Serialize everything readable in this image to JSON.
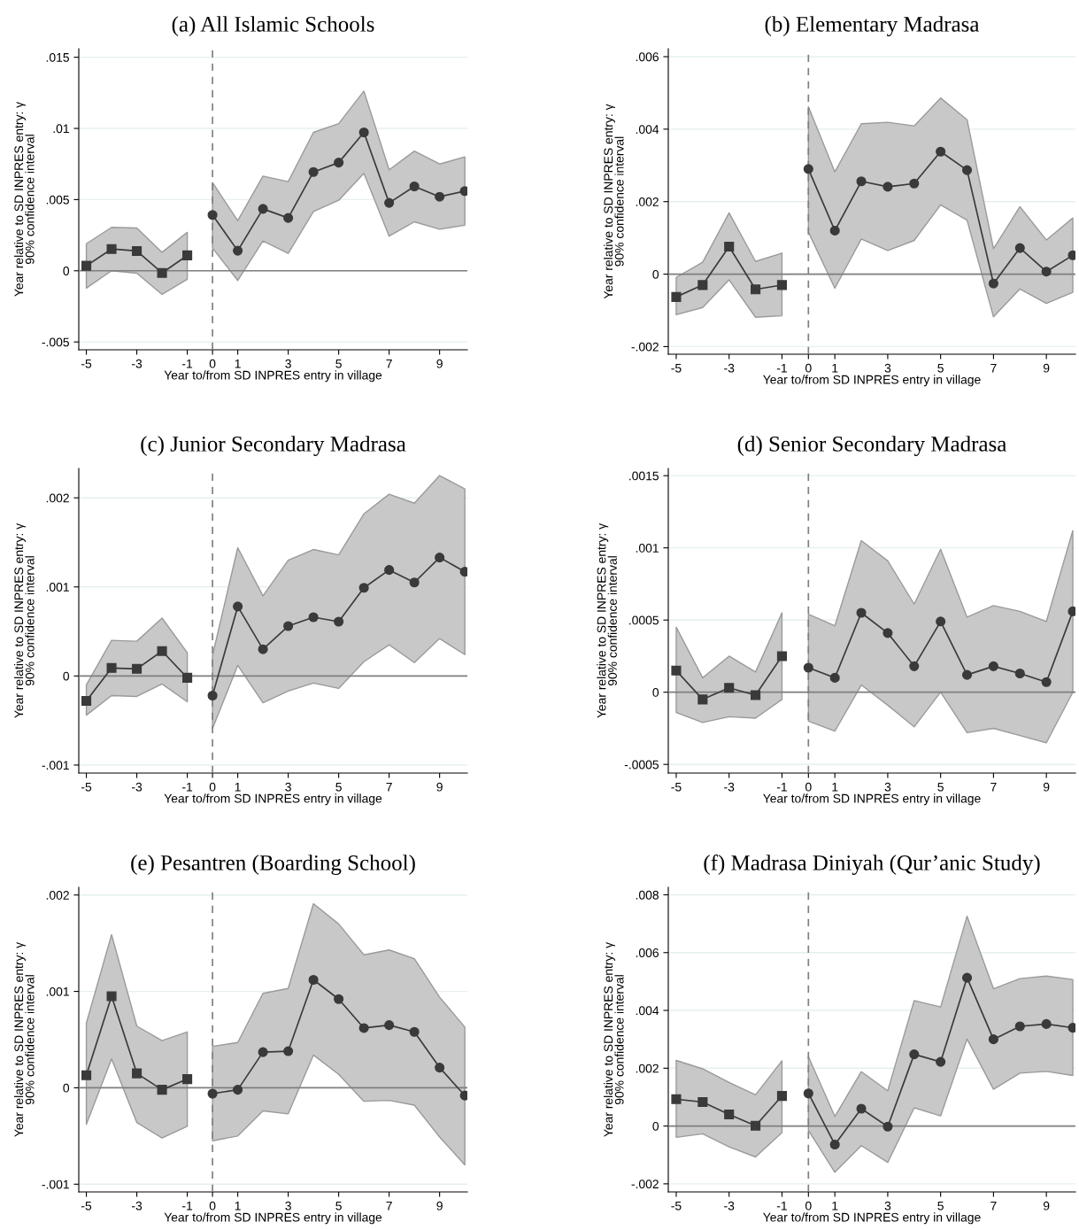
{
  "chart_data": [
    {
      "type": "line",
      "title": "(a) All Islamic Schools",
      "xlabel": "Year to/from SD INPRES entry in village",
      "ylabel": "Year relative to SD INPRES entry: γ\n90% confidence interval",
      "xlim": [
        -5.3,
        10.1
      ],
      "ylim": [
        -0.00555,
        0.0156
      ],
      "xticks": [
        -5,
        -3,
        -1,
        0,
        1,
        3,
        5,
        7,
        9
      ],
      "yticks": [
        {
          "value": -0.005,
          "label": "-.005"
        },
        0,
        {
          "value": 0.005,
          "label": ".005"
        },
        {
          "value": 0.01,
          "label": ".01"
        },
        {
          "value": 0.015,
          "label": ".015"
        }
      ],
      "grid": "y",
      "ref_lines": [
        {
          "axis": "y",
          "value": 0,
          "color": "#7f7f7f",
          "line_style": "solid"
        },
        {
          "axis": "x",
          "value": 0,
          "color": "#7f7f7f",
          "line_style": "dashed"
        }
      ],
      "series": [
        {
          "color": "#3a3a3a",
          "marker": "square",
          "x": [
            -5,
            -4,
            -3,
            -2,
            -1
          ],
          "values": [
            0.00035,
            0.00153,
            0.00139,
            -0.00015,
            0.00108
          ],
          "lower": [
            -0.00122,
            0,
            -0.00017,
            -0.00166,
            -0.0006
          ],
          "upper": [
            0.0019,
            0.00305,
            0.003,
            0.0013,
            0.0027
          ]
        },
        {
          "color": "#3a3a3a",
          "marker": "circle",
          "x": [
            0,
            1,
            2,
            3,
            4,
            5,
            6,
            7,
            8,
            9,
            10
          ],
          "values": [
            0.00392,
            0.00141,
            0.00435,
            0.00371,
            0.00694,
            0.0076,
            0.00972,
            0.00477,
            0.00593,
            0.0052,
            0.0056
          ],
          "lower": [
            0.0016,
            -0.00068,
            0.00209,
            0.00122,
            0.00416,
            0.00495,
            0.00684,
            0.00243,
            0.00344,
            0.00292,
            0.0032
          ],
          "upper": [
            0.0062,
            0.00352,
            0.00665,
            0.00626,
            0.00972,
            0.01034,
            0.01262,
            0.00709,
            0.00841,
            0.0075,
            0.008
          ]
        }
      ]
    },
    {
      "type": "line",
      "title": "(b) Elementary Madrasa",
      "xlabel": "Year to/from SD INPRES entry in village",
      "ylabel": "Year relative to SD INPRES entry: γ\n90% confidence interval",
      "xlim": [
        -5.3,
        10.1
      ],
      "ylim": [
        -0.00221,
        0.00622
      ],
      "xticks": [
        -5,
        -3,
        -1,
        0,
        1,
        3,
        5,
        7,
        9
      ],
      "yticks": [
        {
          "value": -0.002,
          "label": "-.002"
        },
        0,
        {
          "value": 0.002,
          "label": ".002"
        },
        {
          "value": 0.004,
          "label": ".004"
        },
        {
          "value": 0.006,
          "label": ".006"
        }
      ],
      "grid": "y",
      "ref_lines": [
        {
          "axis": "y",
          "value": 0,
          "color": "#7f7f7f",
          "line_style": "solid"
        },
        {
          "axis": "x",
          "value": 0,
          "color": "#7f7f7f",
          "line_style": "dashed"
        }
      ],
      "series": [
        {
          "color": "#3a3a3a",
          "marker": "square",
          "x": [
            -5,
            -4,
            -3,
            -2,
            -1
          ],
          "values": [
            -0.00063,
            -0.0003,
            0.00076,
            -0.00042,
            -0.0003
          ],
          "lower": [
            -0.00112,
            -0.00092,
            -0.00016,
            -0.00119,
            -0.00115
          ],
          "upper": [
            -9e-05,
            0.00033,
            0.00169,
            0.00035,
            0.00058
          ]
        },
        {
          "color": "#3a3a3a",
          "marker": "circle",
          "x": [
            0,
            1,
            2,
            3,
            4,
            5,
            6,
            7,
            8,
            9,
            10
          ],
          "values": [
            0.0029,
            0.0012,
            0.00256,
            0.00241,
            0.0025,
            0.00338,
            0.00287,
            -0.00026,
            0.00072,
            7e-05,
            0.00052
          ],
          "lower": [
            0.00116,
            -0.00039,
            0.00097,
            0.00065,
            0.00093,
            0.00191,
            0.00149,
            -0.00118,
            -0.00041,
            -0.00081,
            -0.0005
          ],
          "upper": [
            0.00462,
            0.00282,
            0.00415,
            0.00419,
            0.00409,
            0.00486,
            0.00426,
            0.0007,
            0.00186,
            0.00094,
            0.00155
          ]
        }
      ]
    },
    {
      "type": "line",
      "title": "(c) Junior Secondary Madrasa",
      "xlabel": "Year to/from SD INPRES entry in village",
      "ylabel": "Year relative to SD INPRES entry: γ\n90% confidence interval",
      "xlim": [
        -5.3,
        10.1
      ],
      "ylim": [
        -0.00109,
        0.00233
      ],
      "xticks": [
        -5,
        -3,
        -1,
        0,
        1,
        3,
        5,
        7,
        9
      ],
      "yticks": [
        {
          "value": -0.001,
          "label": "-.001"
        },
        0,
        {
          "value": 0.001,
          "label": ".001"
        },
        {
          "value": 0.002,
          "label": ".002"
        }
      ],
      "grid": "y",
      "ref_lines": [
        {
          "axis": "y",
          "value": 0,
          "color": "#7f7f7f",
          "line_style": "solid"
        },
        {
          "axis": "x",
          "value": 0,
          "color": "#7f7f7f",
          "line_style": "dashed"
        }
      ],
      "series": [
        {
          "color": "#3a3a3a",
          "marker": "square",
          "x": [
            -5,
            -4,
            -3,
            -2,
            -1
          ],
          "values": [
            -0.00028,
            9e-05,
            8e-05,
            0.00028,
            -2e-05
          ],
          "lower": [
            -0.00044,
            -0.00022,
            -0.00023,
            -9e-05,
            -0.00029
          ],
          "upper": [
            -0.0001,
            0.0004,
            0.00039,
            0.00065,
            0.00026
          ]
        },
        {
          "color": "#3a3a3a",
          "marker": "circle",
          "x": [
            0,
            1,
            2,
            3,
            4,
            5,
            6,
            7,
            8,
            9,
            10
          ],
          "values": [
            -0.00022,
            0.00078,
            0.0003,
            0.00056,
            0.00066,
            0.00061,
            0.00099,
            0.00119,
            0.00105,
            0.00133,
            0.00117
          ],
          "lower": [
            -0.00059,
            0.00012,
            -0.0003,
            -0.00017,
            -8e-05,
            -0.00014,
            0.00016,
            0.00035,
            0.00015,
            0.00042,
            0.00024
          ],
          "upper": [
            0.00023,
            0.00144,
            0.0009,
            0.0013,
            0.00142,
            0.00136,
            0.00182,
            0.00204,
            0.00194,
            0.00225,
            0.0021
          ]
        }
      ]
    },
    {
      "type": "line",
      "title": "(d) Senior Secondary Madrasa",
      "xlabel": "Year to/from SD INPRES entry in village",
      "ylabel": "Year relative to SD INPRES entry: γ\n90% confidence interval",
      "xlim": [
        -5.3,
        10.1
      ],
      "ylim": [
        -0.00056,
        0.00155
      ],
      "xticks": [
        -5,
        -3,
        -1,
        0,
        1,
        3,
        5,
        7,
        9
      ],
      "yticks": [
        {
          "value": -0.0005,
          "label": "-.0005"
        },
        0,
        {
          "value": 0.0005,
          "label": ".0005"
        },
        {
          "value": 0.001,
          "label": ".001"
        },
        {
          "value": 0.0015,
          "label": ".0015"
        }
      ],
      "grid": "y",
      "ref_lines": [
        {
          "axis": "y",
          "value": 0,
          "color": "#7f7f7f",
          "line_style": "solid"
        },
        {
          "axis": "x",
          "value": 0,
          "color": "#7f7f7f",
          "line_style": "dashed"
        }
      ],
      "series": [
        {
          "color": "#3a3a3a",
          "marker": "square",
          "x": [
            -5,
            -4,
            -3,
            -2,
            -1
          ],
          "values": [
            0.00015,
            -5e-05,
            3e-05,
            -2e-05,
            0.00025
          ],
          "lower": [
            -0.00014,
            -0.00021,
            -0.00017,
            -0.00018,
            -5e-05
          ],
          "upper": [
            0.00045,
            0.0001,
            0.00025,
            0.00014,
            0.00055
          ]
        },
        {
          "color": "#3a3a3a",
          "marker": "circle",
          "x": [
            0,
            1,
            2,
            3,
            4,
            5,
            6,
            7,
            8,
            9,
            10
          ],
          "values": [
            0.00017,
            0.0001,
            0.00055,
            0.00041,
            0.00018,
            0.00049,
            0.00012,
            0.00018,
            0.00013,
            7e-05,
            0.00056
          ],
          "lower": [
            -0.0002,
            -0.00027,
            5e-05,
            -9e-05,
            -0.00024,
            0,
            -0.00028,
            -0.00025,
            -0.0003,
            -0.00035,
            0
          ],
          "upper": [
            0.00054,
            0.00046,
            0.00105,
            0.00091,
            0.00061,
            0.00099,
            0.00052,
            0.0006,
            0.00056,
            0.00049,
            0.00112
          ]
        }
      ]
    },
    {
      "type": "line",
      "title": "(e) Pesantren (Boarding School)",
      "xlabel": "Year to/from SD INPRES entry in village",
      "ylabel": "Year relative to SD INPRES entry: γ\n90% confidence interval",
      "xlim": [
        -5.3,
        10.1
      ],
      "ylim": [
        -0.00108,
        0.00208
      ],
      "xticks": [
        -5,
        -3,
        -1,
        0,
        1,
        3,
        5,
        7,
        9
      ],
      "yticks": [
        {
          "value": -0.001,
          "label": "-.001"
        },
        0,
        {
          "value": 0.001,
          "label": ".001"
        },
        {
          "value": 0.002,
          "label": ".002"
        }
      ],
      "grid": "y",
      "ref_lines": [
        {
          "axis": "y",
          "value": 0,
          "color": "#7f7f7f",
          "line_style": "solid"
        },
        {
          "axis": "x",
          "value": 0,
          "color": "#7f7f7f",
          "line_style": "dashed"
        }
      ],
      "series": [
        {
          "color": "#3a3a3a",
          "marker": "square",
          "x": [
            -5,
            -4,
            -3,
            -2,
            -1
          ],
          "values": [
            0.00013,
            0.00095,
            0.00015,
            -2e-05,
            9e-05
          ],
          "lower": [
            -0.00038,
            0.0003,
            -0.00036,
            -0.00052,
            -0.0004
          ],
          "upper": [
            0.00067,
            0.00159,
            0.00064,
            0.00049,
            0.00058
          ]
        },
        {
          "color": "#3a3a3a",
          "marker": "circle",
          "x": [
            0,
            1,
            2,
            3,
            4,
            5,
            6,
            7,
            8,
            9,
            10
          ],
          "values": [
            -6e-05,
            -2e-05,
            0.00037,
            0.00038,
            0.00112,
            0.00092,
            0.00062,
            0.00065,
            0.00058,
            0.00021,
            -8e-05
          ],
          "lower": [
            -0.00055,
            -0.0005,
            -0.00024,
            -0.00027,
            0.00034,
            0.00014,
            -0.00014,
            -0.00013,
            -0.00018,
            -0.00051,
            -0.0008
          ],
          "upper": [
            0.00043,
            0.00047,
            0.00098,
            0.00103,
            0.00191,
            0.0017,
            0.00138,
            0.00143,
            0.00134,
            0.00094,
            0.00063
          ]
        }
      ]
    },
    {
      "type": "line",
      "title": "(f) Madrasa Diniyah (Qur’anic Study)",
      "xlabel": "Year to/from SD INPRES entry in village",
      "ylabel": "Year relative to SD INPRES entry: γ\n90% confidence interval",
      "xlim": [
        -5.3,
        10.1
      ],
      "ylim": [
        -0.00228,
        0.00826
      ],
      "xticks": [
        -5,
        -3,
        -1,
        0,
        1,
        3,
        5,
        7,
        9
      ],
      "yticks": [
        {
          "value": -0.002,
          "label": "-.002"
        },
        0,
        {
          "value": 0.002,
          "label": ".002"
        },
        {
          "value": 0.004,
          "label": ".004"
        },
        {
          "value": 0.006,
          "label": ".006"
        },
        {
          "value": 0.008,
          "label": ".008"
        }
      ],
      "grid": "y",
      "ref_lines": [
        {
          "axis": "y",
          "value": 0,
          "color": "#7f7f7f",
          "line_style": "solid"
        },
        {
          "axis": "x",
          "value": 0,
          "color": "#7f7f7f",
          "line_style": "dashed"
        }
      ],
      "series": [
        {
          "color": "#3a3a3a",
          "marker": "square",
          "x": [
            -5,
            -4,
            -3,
            -2,
            -1
          ],
          "values": [
            0.00093,
            0.00083,
            0.0004,
            1e-05,
            0.00104
          ],
          "lower": [
            -0.00039,
            -0.00027,
            -0.00072,
            -0.00107,
            -0.00023
          ],
          "upper": [
            0.00227,
            0.00198,
            0.00151,
            0.00108,
            0.00226
          ]
        },
        {
          "color": "#3a3a3a",
          "marker": "circle",
          "x": [
            0,
            1,
            2,
            3,
            4,
            5,
            6,
            7,
            8,
            9,
            10
          ],
          "values": [
            0.00113,
            -0.00064,
            0.0006,
            -2e-05,
            0.00248,
            0.00222,
            0.00513,
            0.003,
            0.00345,
            0.00353,
            0.0034
          ],
          "lower": [
            -0.00015,
            -0.0016,
            -0.00068,
            -0.00126,
            0.00063,
            0.00035,
            0.00301,
            0.00127,
            0.00183,
            0.00189,
            0.00175
          ],
          "upper": [
            0.0024,
            0.00033,
            0.00188,
            0.00122,
            0.00434,
            0.00412,
            0.00726,
            0.00475,
            0.0051,
            0.00519,
            0.00507
          ]
        }
      ]
    }
  ]
}
